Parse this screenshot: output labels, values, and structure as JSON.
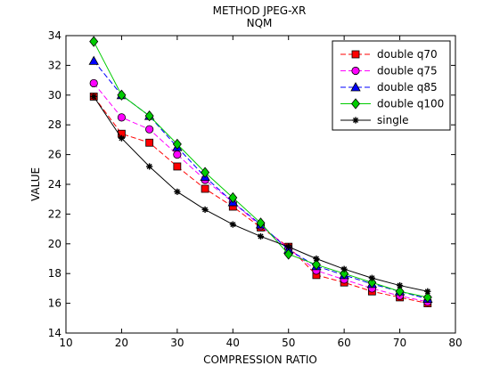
{
  "chart_data": {
    "type": "line",
    "title": "METHOD JPEG-XR",
    "subtitle": "NQM",
    "xlabel": "COMPRESSION RATIO",
    "ylabel": "VALUE",
    "xlim": [
      10,
      80
    ],
    "ylim": [
      14,
      34
    ],
    "xticks": [
      "10",
      "20",
      "30",
      "40",
      "50",
      "60",
      "70",
      "80"
    ],
    "yticks": [
      "14",
      "16",
      "18",
      "20",
      "22",
      "24",
      "26",
      "28",
      "30",
      "32",
      "34"
    ],
    "grid": false,
    "legend_position": "top-right",
    "x": [
      15,
      20,
      25,
      30,
      35,
      40,
      45,
      50,
      55,
      60,
      65,
      70,
      75
    ],
    "series": [
      {
        "name": "double q70",
        "color": "#ff0000",
        "marker": "square",
        "line_style": "dashed",
        "values": [
          29.9,
          27.4,
          26.8,
          25.2,
          23.7,
          22.5,
          21.1,
          19.8,
          17.9,
          17.4,
          16.8,
          16.4,
          16.0
        ]
      },
      {
        "name": "double q75",
        "color": "#ff00ff",
        "marker": "circle",
        "line_style": "dashed",
        "values": [
          30.8,
          28.5,
          27.7,
          26.0,
          24.3,
          22.8,
          21.2,
          19.7,
          18.2,
          17.6,
          17.0,
          16.5,
          16.1
        ]
      },
      {
        "name": "double q85",
        "color": "#0000ff",
        "marker": "triangle",
        "line_style": "dashed",
        "values": [
          32.3,
          30.0,
          28.6,
          26.5,
          24.5,
          22.8,
          21.3,
          19.6,
          18.5,
          17.9,
          17.3,
          16.8,
          16.3
        ]
      },
      {
        "name": "double q100",
        "color": "#00cc00",
        "marker": "diamond",
        "line_style": "solid",
        "values": [
          33.6,
          30.0,
          28.6,
          26.7,
          24.8,
          23.1,
          21.4,
          19.3,
          18.6,
          18.0,
          17.4,
          16.8,
          16.4
        ]
      },
      {
        "name": "single",
        "color": "#000000",
        "marker": "star",
        "line_style": "solid",
        "values": [
          29.9,
          27.1,
          25.2,
          23.5,
          22.3,
          21.3,
          20.5,
          19.8,
          19.0,
          18.3,
          17.7,
          17.2,
          16.8
        ]
      }
    ]
  }
}
